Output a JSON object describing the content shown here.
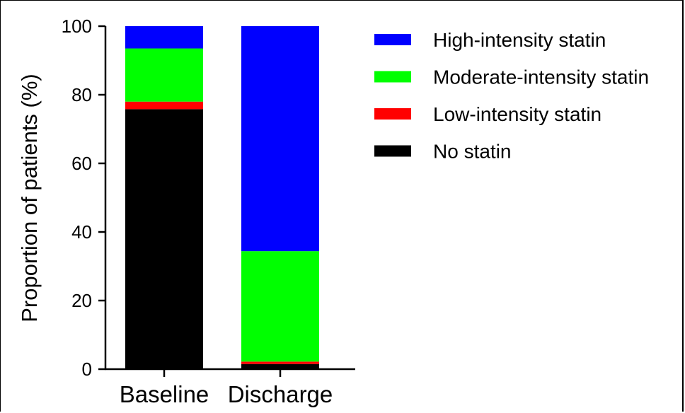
{
  "chart_data": {
    "type": "bar",
    "stacked": true,
    "categories": [
      "Baseline",
      "Discharge"
    ],
    "series": [
      {
        "name": "No statin",
        "values": [
          75.8,
          1.5
        ],
        "color": "#000000"
      },
      {
        "name": "Low-intensity statin",
        "values": [
          2.2,
          0.7
        ],
        "color": "#ff0000"
      },
      {
        "name": "Moderate-intensity statin",
        "values": [
          15.5,
          32.2
        ],
        "color": "#00ff00"
      },
      {
        "name": "High-intensity statin",
        "values": [
          6.5,
          65.6
        ],
        "color": "#0000ff"
      }
    ],
    "legend_order": [
      "High-intensity statin",
      "Moderate-intensity statin",
      "Low-intensity statin",
      "No statin"
    ],
    "xlabel": "",
    "ylabel": "Proportion of patients (%)",
    "ylim": [
      0,
      100
    ],
    "yticks": [
      "0",
      "20",
      "40",
      "60",
      "80",
      "100"
    ],
    "legend_position": "right",
    "grid": false
  }
}
